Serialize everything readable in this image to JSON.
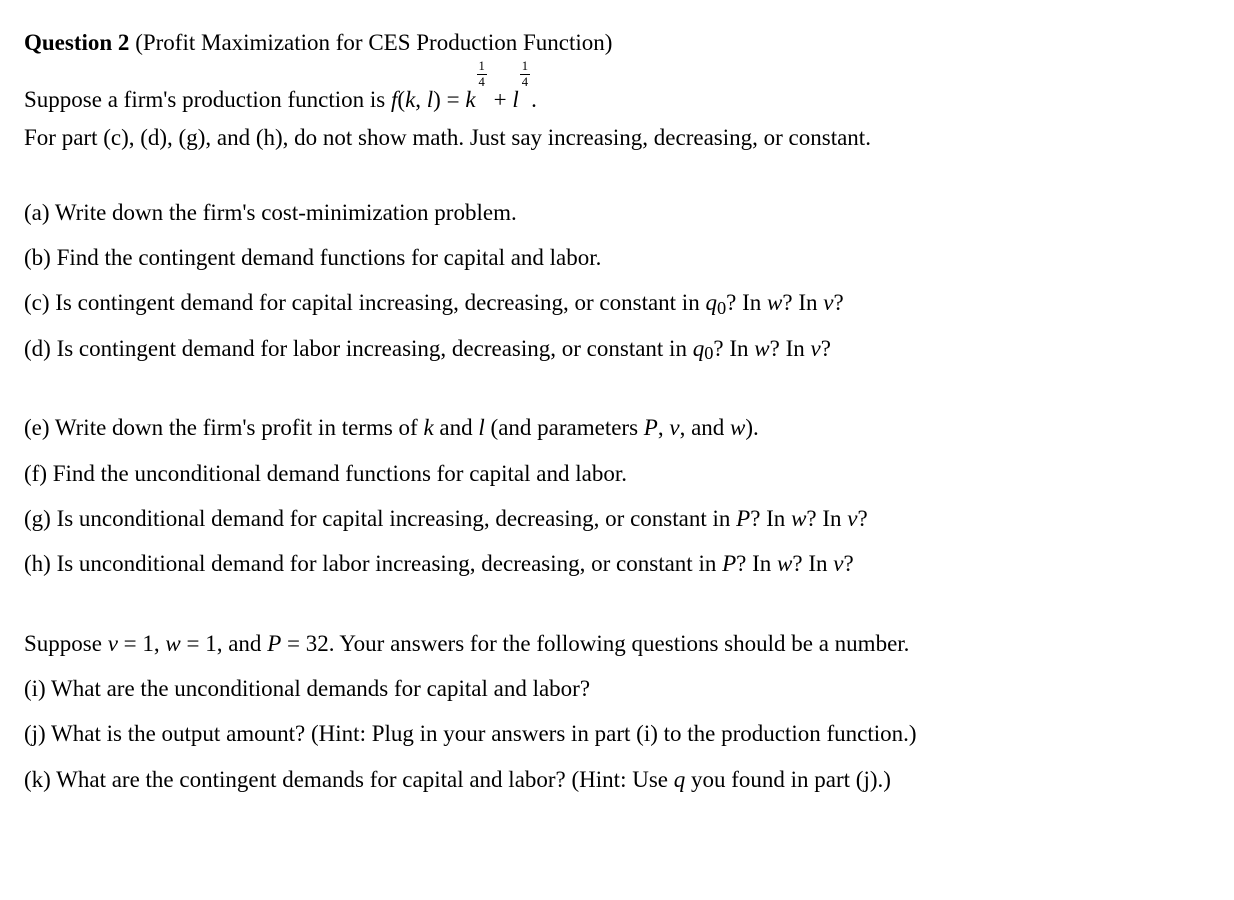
{
  "heading": {
    "label": "Question 2",
    "subtitle": "(Profit Maximization for CES Production Function)"
  },
  "intro": {
    "line1_a": "Suppose a firm's production function is ",
    "fn_f": "f",
    "fn_open": "(",
    "fn_k": "k",
    "fn_comma": ", ",
    "fn_l": "l",
    "fn_close": ")",
    "equals": " = ",
    "k_base": "k",
    "plus": " + ",
    "l_base": "l",
    "period": ".",
    "frac_num": "1",
    "frac_den": "4",
    "line2": "For part (c), (d), (g), and (h), do not show math. Just say increasing, decreasing, or constant."
  },
  "parts_block1": {
    "a": "(a) Write down the firm's cost-minimization problem.",
    "b": "(b) Find the contingent demand functions for capital and labor.",
    "c_pre": "(c) Is contingent demand for capital increasing, decreasing, or constant in ",
    "d_pre": "(d) Is contingent demand for labor increasing, decreasing, or constant in "
  },
  "vars_cd": {
    "q": "q",
    "zero": "0",
    "q_question": "? In ",
    "w": "w",
    "w_question": "? In ",
    "v": "v",
    "v_question": "?"
  },
  "parts_block2": {
    "e_pre": "(e) Write down the firm's profit in terms of ",
    "e_k": "k",
    "e_and": " and ",
    "e_l": "l",
    "e_paropen": " (and parameters ",
    "e_P": "P",
    "e_c1": ", ",
    "e_v": "v",
    "e_c2": ", and ",
    "e_w": "w",
    "e_close": ").",
    "f": "(f) Find the unconditional demand functions for capital and labor.",
    "g_pre": "(g) Is unconditional demand for capital increasing, decreasing, or constant in ",
    "h_pre": "(h) Is unconditional demand for labor increasing, decreasing, or constant in "
  },
  "vars_gh": {
    "P": "P",
    "P_question": "? In ",
    "w": "w",
    "w_question": "? In ",
    "v": "v",
    "v_question": "?"
  },
  "block3": {
    "suppose_pre": "Suppose ",
    "v": "v",
    "eq1": " = 1, ",
    "w": "w",
    "eq2": " = 1, and ",
    "P": "P",
    "eq3": " = 32. Your answers for the following questions should be a number.",
    "i": "(i) What are the unconditional demands for capital and labor?",
    "j": "(j) What is the output amount? (Hint: Plug in your answers in part (i) to the production function.)",
    "k_pre": "(k) What are the contingent demands for capital and labor? (Hint: Use ",
    "k_q": "q",
    "k_post": " you found in part (j).)"
  }
}
